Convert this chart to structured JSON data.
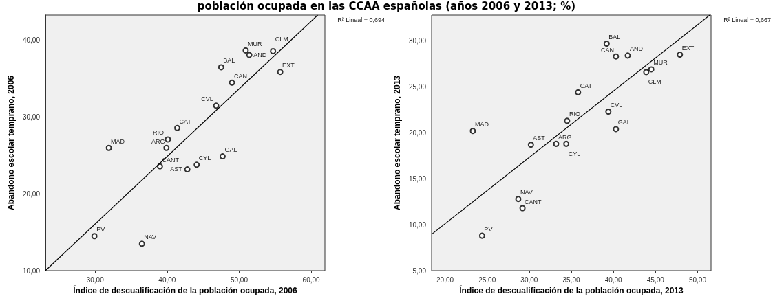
{
  "chart_data": [
    {
      "type": "scatter",
      "title": "población ocupada en las CCAA españolas (años 2006 y 2013; %)",
      "xlabel": "Índice de descualificación de la población ocupada, 2006",
      "ylabel": "Abandono escolar temprano, 2006",
      "xlim": [
        23.1,
        61.9
      ],
      "ylim": [
        10,
        43.3
      ],
      "xticks": [
        {
          "value": 30,
          "label": "30,00"
        },
        {
          "value": 40,
          "label": "40,00"
        },
        {
          "value": 50,
          "label": "50,00"
        },
        {
          "value": 60,
          "label": "60,00"
        }
      ],
      "yticks": [
        {
          "value": 10,
          "label": "10,00"
        },
        {
          "value": 20,
          "label": "20,00"
        },
        {
          "value": 30,
          "label": "30,00"
        },
        {
          "value": 40,
          "label": "40,00"
        }
      ],
      "grid": false,
      "marker": "circle",
      "series": [
        {
          "color": "#000000",
          "x": [
            29.9,
            36.5,
            31.9,
            40.1,
            39.9,
            39.0,
            41.4,
            42.8,
            44.1,
            47.7,
            46.8,
            49.0,
            47.5,
            50.9,
            51.4,
            54.7,
            55.7
          ],
          "values": [
            14.5,
            13.5,
            26.0,
            27.1,
            26.0,
            23.6,
            28.6,
            23.2,
            23.8,
            24.9,
            31.5,
            34.5,
            36.5,
            38.7,
            38.1,
            38.6,
            35.9
          ]
        },
        {
          "type": "line",
          "color": "#000000",
          "marker": "none",
          "x": [
            23.1,
            60.9
          ],
          "values": [
            10,
            43.3
          ]
        }
      ],
      "annotations": [
        {
          "text": "PV",
          "x": 29.9,
          "y": 14.5
        },
        {
          "text": "NAV",
          "x": 36.5,
          "y": 13.5
        },
        {
          "text": "MAD",
          "x": 31.9,
          "y": 26.0
        },
        {
          "text": "RIO",
          "x": 40.1,
          "y": 27.1
        },
        {
          "text": "ARG",
          "x": 39.9,
          "y": 26.0
        },
        {
          "text": "CANT",
          "x": 39.0,
          "y": 23.6
        },
        {
          "text": "CAT",
          "x": 41.4,
          "y": 28.6
        },
        {
          "text": "AST",
          "x": 42.8,
          "y": 23.2
        },
        {
          "text": "CYL",
          "x": 44.1,
          "y": 23.8
        },
        {
          "text": "GAL",
          "x": 47.7,
          "y": 24.9
        },
        {
          "text": "CVL",
          "x": 46.8,
          "y": 31.5
        },
        {
          "text": "CAN",
          "x": 49.0,
          "y": 34.5
        },
        {
          "text": "BAL",
          "x": 47.5,
          "y": 36.5
        },
        {
          "text": "MUR",
          "x": 50.9,
          "y": 38.7
        },
        {
          "text": "AND",
          "x": 51.4,
          "y": 38.1
        },
        {
          "text": "CLM",
          "x": 54.7,
          "y": 38.6
        },
        {
          "text": "EXT",
          "x": 55.7,
          "y": 35.9
        },
        "R² Lineal = 0,694"
      ]
    },
    {
      "type": "scatter",
      "xlabel": "Índice de descualificación de la población ocupada, 2013",
      "ylabel": "Abandono escolar temprano, 2013",
      "xlim": [
        18.4,
        51.6
      ],
      "ylim": [
        5,
        32.8
      ],
      "xticks": [
        {
          "value": 20,
          "label": "20,00"
        },
        {
          "value": 25,
          "label": "25,00"
        },
        {
          "value": 30,
          "label": "30,00"
        },
        {
          "value": 35,
          "label": "35,00"
        },
        {
          "value": 40,
          "label": "40,00"
        },
        {
          "value": 45,
          "label": "45,00"
        },
        {
          "value": 50,
          "label": "50,00"
        }
      ],
      "yticks": [
        {
          "value": 5,
          "label": "5,00"
        },
        {
          "value": 10,
          "label": "10,00"
        },
        {
          "value": 15,
          "label": "15,00"
        },
        {
          "value": 20,
          "label": "20,00"
        },
        {
          "value": 25,
          "label": "25,00"
        },
        {
          "value": 30,
          "label": "30,00"
        }
      ],
      "grid": false,
      "marker": "circle",
      "series": [
        {
          "color": "#000000",
          "x": [
            39.2,
            40.3,
            41.7,
            47.9,
            44.5,
            43.9,
            35.8,
            39.4,
            34.5,
            40.3,
            23.3,
            30.2,
            33.2,
            34.4,
            28.7,
            29.2,
            24.4
          ],
          "values": [
            29.7,
            28.3,
            28.4,
            28.5,
            26.9,
            26.6,
            24.4,
            22.3,
            21.3,
            20.4,
            20.2,
            18.7,
            18.8,
            18.8,
            12.8,
            11.8,
            8.8
          ]
        },
        {
          "type": "line",
          "color": "#000000",
          "marker": "none",
          "x": [
            18.4,
            51.45
          ],
          "values": [
            8.95,
            32.8
          ]
        }
      ],
      "annotations": [
        {
          "text": "BAL",
          "x": 39.2,
          "y": 29.7
        },
        {
          "text": "CAN",
          "x": 40.3,
          "y": 28.3
        },
        {
          "text": "AND",
          "x": 41.7,
          "y": 28.4
        },
        {
          "text": "EXT",
          "x": 47.9,
          "y": 28.5
        },
        {
          "text": "MUR",
          "x": 44.5,
          "y": 26.9
        },
        {
          "text": "CLM",
          "x": 43.9,
          "y": 26.6
        },
        {
          "text": "CAT",
          "x": 35.8,
          "y": 24.4
        },
        {
          "text": "CVL",
          "x": 39.4,
          "y": 22.3
        },
        {
          "text": "RIO",
          "x": 34.5,
          "y": 21.3
        },
        {
          "text": "GAL",
          "x": 40.3,
          "y": 20.4
        },
        {
          "text": "MAD",
          "x": 23.3,
          "y": 20.2
        },
        {
          "text": "AST",
          "x": 30.2,
          "y": 18.7
        },
        {
          "text": "ARG",
          "x": 33.2,
          "y": 18.8
        },
        {
          "text": "CYL",
          "x": 34.4,
          "y": 18.8
        },
        {
          "text": "NAV",
          "x": 28.7,
          "y": 12.8
        },
        {
          "text": "CANT",
          "x": 29.2,
          "y": 11.8
        },
        {
          "text": "PV",
          "x": 24.4,
          "y": 8.8
        },
        "R² Lineal = 0,667"
      ]
    }
  ]
}
